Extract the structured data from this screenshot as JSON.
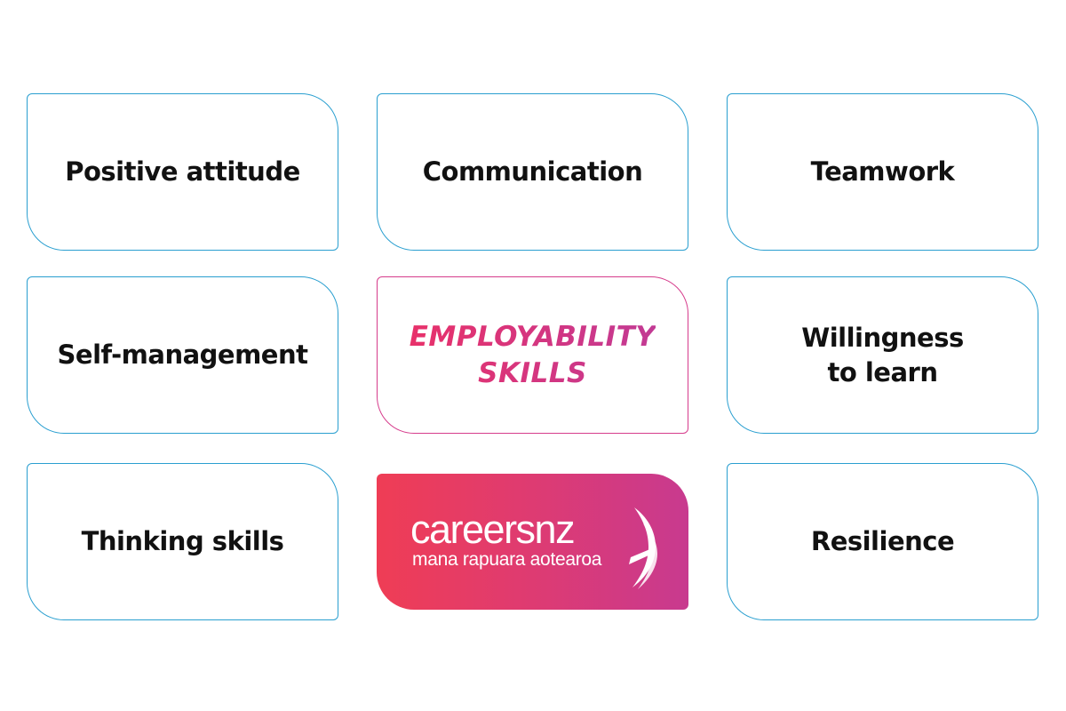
{
  "skills": {
    "positive_attitude": "Positive attitude",
    "communication": "Communication",
    "teamwork": "Teamwork",
    "self_management": "Self-management",
    "willingness_line1": "Willingness",
    "willingness_line2": "to learn",
    "thinking_skills": "Thinking skills",
    "resilience": "Resilience"
  },
  "center": {
    "line1": "EMPLOYABILITY",
    "line2": "SKILLS"
  },
  "logo": {
    "brand": "careersnz",
    "tagline": "mana rapuara aotearoa",
    "icon": "swoosh-icon"
  },
  "colors": {
    "card_border": "#2a9fd0",
    "center_border": "#d63c8c",
    "gradient_start": "#ef3d55",
    "gradient_end": "#c83a8f",
    "text": "#111111"
  }
}
